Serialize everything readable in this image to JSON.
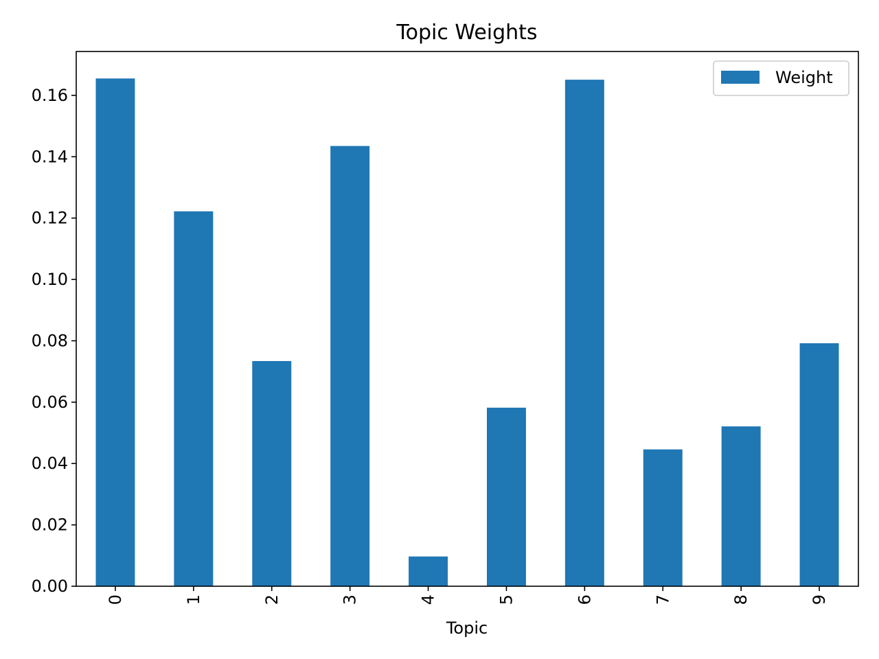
{
  "chart_data": {
    "type": "bar",
    "title": "Topic Weights",
    "xlabel": "Topic",
    "ylabel": "",
    "categories": [
      "0",
      "1",
      "2",
      "3",
      "4",
      "5",
      "6",
      "7",
      "8",
      "9"
    ],
    "series": [
      {
        "name": "Weight",
        "values": [
          0.1655,
          0.1222,
          0.0734,
          0.1435,
          0.0097,
          0.0582,
          0.1651,
          0.0446,
          0.0521,
          0.0792
        ]
      }
    ],
    "ylim": [
      0,
      0.1743
    ],
    "yticks": [
      "0.00",
      "0.02",
      "0.04",
      "0.06",
      "0.08",
      "0.10",
      "0.12",
      "0.14",
      "0.16"
    ],
    "ytick_values": [
      0,
      0.02,
      0.04,
      0.06,
      0.08,
      0.1,
      0.12,
      0.14,
      0.16
    ],
    "grid": false,
    "legend_position": "top-right",
    "colors": {
      "bar": "#1f77b4",
      "axis": "#000000",
      "legend_border": "#cccccc"
    }
  }
}
